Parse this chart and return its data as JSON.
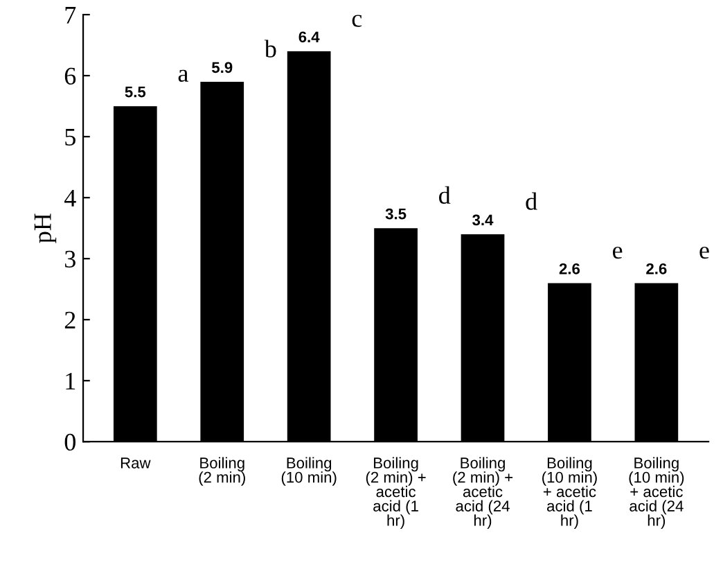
{
  "chart_data": {
    "type": "bar",
    "ylabel": "pH",
    "categories": [
      "Raw",
      "Boiling\n(2 min)",
      "Boiling\n(10 min)",
      "Boiling\n(2 min) +\nacetic\nacid (1\nhr)",
      "Boiling\n(2 min) +\nacetic\nacid (24\nhr)",
      "Boiling\n(10 min)\n+ acetic\nacid (1\nhr)",
      "Boiling\n(10 min)\n+ acetic\nacid (24\nhr)"
    ],
    "values": [
      5.5,
      5.9,
      6.4,
      3.5,
      3.4,
      2.6,
      2.6
    ],
    "color": "#000000",
    "ylim": [
      0,
      7
    ],
    "yticks": [
      0,
      1,
      2,
      3,
      4,
      5,
      6,
      7
    ],
    "grid": false,
    "data_labels": true,
    "annotations": [
      "a",
      "b",
      "c",
      "d",
      "d",
      "e",
      "e"
    ]
  }
}
